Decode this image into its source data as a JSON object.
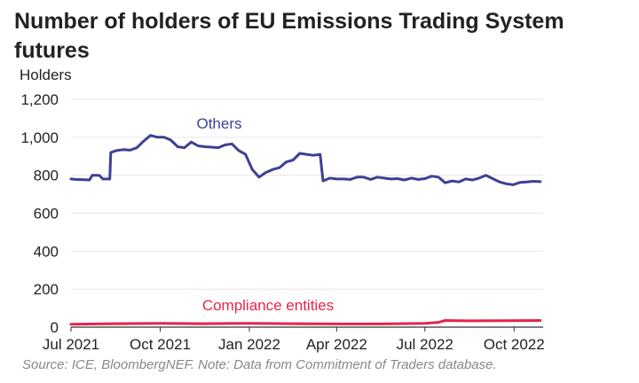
{
  "header": {
    "title": "Number of holders of EU Emissions Trading System futures"
  },
  "footer": {
    "source": "Source: ICE, BloombergNEF. Note: Data from Commitment of Traders database."
  },
  "chart_data": {
    "type": "line",
    "title": "Number of holders of EU Emissions Trading System futures",
    "xlabel": "",
    "ylabel": "Holders",
    "ylim": [
      0,
      1200
    ],
    "xlim": [
      "2021-07-01",
      "2022-10-31"
    ],
    "yticks": [
      "0",
      "200",
      "400",
      "600",
      "800",
      "1,000",
      "1,200"
    ],
    "xticks": [
      {
        "date": "2021-07-01",
        "label": "Jul 2021"
      },
      {
        "date": "2021-10-01",
        "label": "Oct 2021"
      },
      {
        "date": "2022-01-01",
        "label": "Jan 2022"
      },
      {
        "date": "2022-04-01",
        "label": "Apr 2022"
      },
      {
        "date": "2022-07-01",
        "label": "Jul 2022"
      },
      {
        "date": "2022-10-01",
        "label": "Oct 2022"
      }
    ],
    "grid": true,
    "series": [
      {
        "name": "Others",
        "color": "#3e4095",
        "points": [
          [
            "2021-07-01",
            780
          ],
          [
            "2021-07-06",
            778
          ],
          [
            "2021-07-13",
            777
          ],
          [
            "2021-07-20",
            775
          ],
          [
            "2021-07-23",
            800
          ],
          [
            "2021-07-30",
            800
          ],
          [
            "2021-08-03",
            780
          ],
          [
            "2021-08-10",
            780
          ],
          [
            "2021-08-11",
            920
          ],
          [
            "2021-08-17",
            930
          ],
          [
            "2021-08-24",
            935
          ],
          [
            "2021-08-31",
            932
          ],
          [
            "2021-09-07",
            945
          ],
          [
            "2021-09-14",
            980
          ],
          [
            "2021-09-21",
            1010
          ],
          [
            "2021-09-28",
            1000
          ],
          [
            "2021-10-05",
            1000
          ],
          [
            "2021-10-12",
            985
          ],
          [
            "2021-10-19",
            950
          ],
          [
            "2021-10-26",
            945
          ],
          [
            "2021-11-02",
            975
          ],
          [
            "2021-11-09",
            955
          ],
          [
            "2021-11-16",
            950
          ],
          [
            "2021-11-23",
            948
          ],
          [
            "2021-11-30",
            945
          ],
          [
            "2021-12-07",
            960
          ],
          [
            "2021-12-14",
            965
          ],
          [
            "2021-12-21",
            930
          ],
          [
            "2021-12-28",
            910
          ],
          [
            "2022-01-04",
            830
          ],
          [
            "2022-01-11",
            790
          ],
          [
            "2022-01-18",
            815
          ],
          [
            "2022-01-25",
            830
          ],
          [
            "2022-02-01",
            840
          ],
          [
            "2022-02-08",
            870
          ],
          [
            "2022-02-15",
            880
          ],
          [
            "2022-02-22",
            915
          ],
          [
            "2022-03-01",
            910
          ],
          [
            "2022-03-08",
            905
          ],
          [
            "2022-03-15",
            910
          ],
          [
            "2022-03-18",
            770
          ],
          [
            "2022-03-25",
            785
          ],
          [
            "2022-04-01",
            780
          ],
          [
            "2022-04-08",
            780
          ],
          [
            "2022-04-15",
            778
          ],
          [
            "2022-04-22",
            790
          ],
          [
            "2022-04-29",
            790
          ],
          [
            "2022-05-06",
            778
          ],
          [
            "2022-05-13",
            790
          ],
          [
            "2022-05-20",
            785
          ],
          [
            "2022-05-27",
            780
          ],
          [
            "2022-06-03",
            782
          ],
          [
            "2022-06-10",
            775
          ],
          [
            "2022-06-17",
            785
          ],
          [
            "2022-06-24",
            778
          ],
          [
            "2022-07-01",
            782
          ],
          [
            "2022-07-08",
            795
          ],
          [
            "2022-07-15",
            790
          ],
          [
            "2022-07-22",
            760
          ],
          [
            "2022-07-29",
            770
          ],
          [
            "2022-08-05",
            765
          ],
          [
            "2022-08-12",
            780
          ],
          [
            "2022-08-19",
            775
          ],
          [
            "2022-08-26",
            785
          ],
          [
            "2022-09-02",
            800
          ],
          [
            "2022-09-09",
            782
          ],
          [
            "2022-09-16",
            765
          ],
          [
            "2022-09-23",
            755
          ],
          [
            "2022-09-30",
            750
          ],
          [
            "2022-10-07",
            762
          ],
          [
            "2022-10-14",
            765
          ],
          [
            "2022-10-21",
            768
          ],
          [
            "2022-10-28",
            766
          ]
        ]
      },
      {
        "name": "Compliance entities",
        "color": "#e8234a",
        "points": [
          [
            "2021-07-01",
            15
          ],
          [
            "2021-08-15",
            18
          ],
          [
            "2021-10-01",
            20
          ],
          [
            "2021-11-15",
            18
          ],
          [
            "2022-01-01",
            20
          ],
          [
            "2022-02-15",
            18
          ],
          [
            "2022-04-01",
            17
          ],
          [
            "2022-05-15",
            17
          ],
          [
            "2022-07-01",
            20
          ],
          [
            "2022-07-15",
            25
          ],
          [
            "2022-07-22",
            35
          ],
          [
            "2022-08-15",
            33
          ],
          [
            "2022-09-15",
            34
          ],
          [
            "2022-10-28",
            35
          ]
        ]
      }
    ]
  }
}
